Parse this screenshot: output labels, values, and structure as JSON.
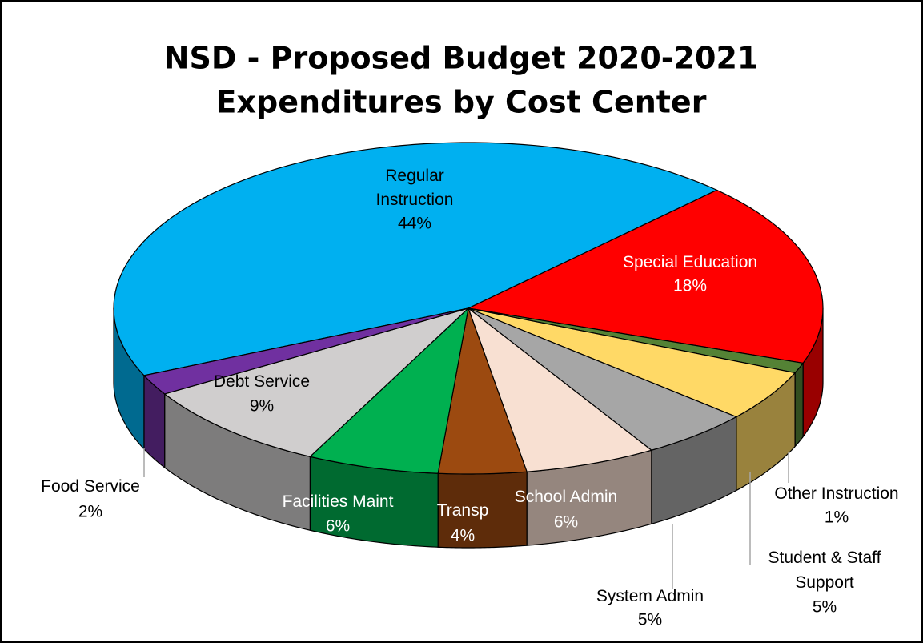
{
  "chart_data": {
    "type": "pie3d",
    "title": "NSD - Proposed Budget 2020-2021",
    "subtitle": "Expenditures by Cost Center",
    "categories": [
      "Regular Instruction",
      "Special Education",
      "Other Instruction",
      "Student & Staff Support",
      "System Admin",
      "School Admin",
      "Transp",
      "Facilities Maint",
      "Debt Service",
      "Food Service"
    ],
    "values": [
      44,
      18,
      1,
      5,
      5,
      6,
      4,
      6,
      9,
      2
    ],
    "value_labels": [
      "44%",
      "18%",
      "1%",
      "5%",
      "5%",
      "6%",
      "4%",
      "6%",
      "9%",
      "2%"
    ],
    "colors": [
      "#00b0f0",
      "#ff0000",
      "#548235",
      "#ffd966",
      "#a6a6a6",
      "#f8e0d2",
      "#9c4a10",
      "#00b050",
      "#d0cece",
      "#7030a0"
    ]
  }
}
